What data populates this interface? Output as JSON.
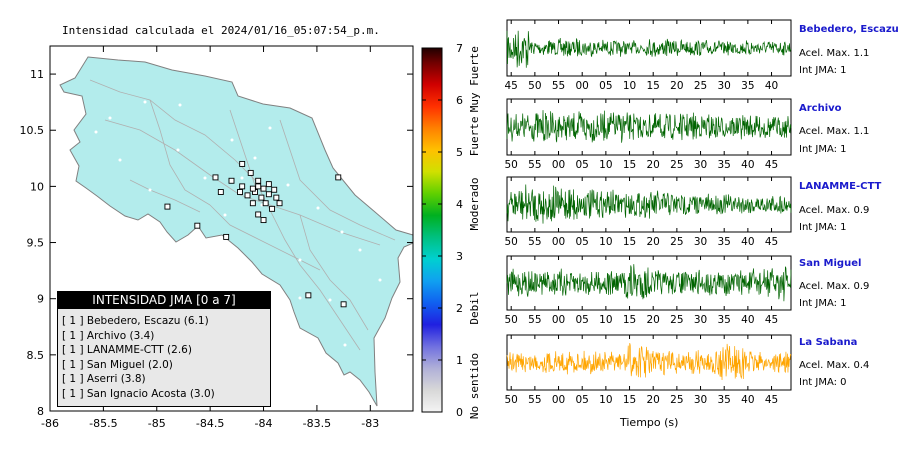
{
  "chart_data": [
    {
      "type": "map",
      "title": "Intensidad calculada el 2024/01/16_05:07:54_p.m.",
      "xlim": [
        -86,
        -82.6
      ],
      "ylim": [
        8,
        11.25
      ],
      "xticks": [
        "-86",
        "-85.5",
        "-85",
        "-84.5",
        "-84",
        "-83.5",
        "-83"
      ],
      "yticks": [
        "8",
        "8.5",
        "9",
        "9.5",
        "10",
        "10.5",
        "11"
      ],
      "land_color": "#b3ecec",
      "stations": [
        {
          "lon": -84.12,
          "lat": 10.12
        },
        {
          "lon": -84.05,
          "lat": 10.05
        },
        {
          "lon": -84.0,
          "lat": 9.98
        },
        {
          "lon": -83.95,
          "lat": 9.93
        },
        {
          "lon": -84.08,
          "lat": 9.95
        },
        {
          "lon": -84.02,
          "lat": 9.9
        },
        {
          "lon": -83.98,
          "lat": 9.85
        },
        {
          "lon": -84.15,
          "lat": 9.92
        },
        {
          "lon": -84.2,
          "lat": 10.0
        },
        {
          "lon": -84.3,
          "lat": 10.05
        },
        {
          "lon": -83.9,
          "lat": 9.97
        },
        {
          "lon": -83.88,
          "lat": 9.9
        },
        {
          "lon": -84.1,
          "lat": 9.85
        },
        {
          "lon": -83.92,
          "lat": 9.8
        },
        {
          "lon": -84.22,
          "lat": 9.95
        },
        {
          "lon": -84.45,
          "lat": 10.08
        },
        {
          "lon": -84.2,
          "lat": 10.2
        },
        {
          "lon": -84.05,
          "lat": 9.75
        },
        {
          "lon": -84.0,
          "lat": 9.7
        },
        {
          "lon": -83.85,
          "lat": 9.85
        },
        {
          "lon": -84.4,
          "lat": 9.95
        },
        {
          "lon": -84.62,
          "lat": 9.65
        },
        {
          "lon": -84.35,
          "lat": 9.55
        },
        {
          "lon": -83.3,
          "lat": 10.08
        },
        {
          "lon": -83.58,
          "lat": 9.03
        },
        {
          "lon": -83.25,
          "lat": 8.95
        },
        {
          "lon": -84.1,
          "lat": 9.98
        },
        {
          "lon": -83.95,
          "lat": 10.02
        },
        {
          "lon": -84.05,
          "lat": 10.0
        },
        {
          "lon": -84.9,
          "lat": 9.82
        }
      ]
    },
    {
      "type": "colorbar",
      "ticks": [
        "0",
        "1",
        "2",
        "3",
        "4",
        "5",
        "6",
        "7"
      ],
      "labels": [
        "No sentido",
        "Debil",
        "Moderado",
        "Fuerte",
        "Muy Fuerte"
      ]
    },
    {
      "type": "line",
      "xlabel": "Tiempo (s)",
      "series": [
        {
          "name": "Bebedero, Escazu",
          "color": "#006400",
          "ticks": [
            "45",
            "50",
            "55",
            "00",
            "05",
            "10",
            "15",
            "20",
            "25",
            "30",
            "35",
            "40"
          ],
          "acel": "Acel. Max. 1.1",
          "int": "Int JMA: 1",
          "amp": [
            0.9,
            0.35,
            0.4,
            0.35,
            0.35,
            0.3,
            0.4,
            0.35,
            0.35,
            0.3,
            0.35,
            0.3
          ]
        },
        {
          "name": "Archivo",
          "color": "#006400",
          "ticks": [
            "50",
            "55",
            "00",
            "05",
            "10",
            "15",
            "20",
            "25",
            "30",
            "35",
            "40",
            "45"
          ],
          "acel": "Acel. Max. 1.1",
          "int": "Int JMA: 1",
          "amp": [
            0.6,
            0.7,
            0.6,
            0.7,
            0.65,
            0.6,
            0.55,
            0.6,
            0.55,
            0.5,
            0.5,
            0.45
          ]
        },
        {
          "name": "LANAMME-CTT",
          "color": "#006400",
          "ticks": [
            "50",
            "55",
            "00",
            "05",
            "10",
            "15",
            "20",
            "25",
            "30",
            "35",
            "40",
            "45"
          ],
          "acel": "Acel. Max. 0.9",
          "int": "Int JMA: 1",
          "amp": [
            0.8,
            0.9,
            0.8,
            0.65,
            0.6,
            0.55,
            0.6,
            0.5,
            0.45,
            0.45,
            0.4,
            0.4
          ]
        },
        {
          "name": "San Miguel",
          "color": "#006400",
          "ticks": [
            "50",
            "55",
            "00",
            "05",
            "10",
            "15",
            "20",
            "25",
            "30",
            "35",
            "40",
            "45"
          ],
          "acel": "Acel. Max. 0.9",
          "int": "Int JMA: 1",
          "amp": [
            0.6,
            0.55,
            0.6,
            0.55,
            0.6,
            0.95,
            0.6,
            0.55,
            0.6,
            0.55,
            0.6,
            0.8
          ]
        },
        {
          "name": "La Sabana",
          "color": "#ffa500",
          "ticks": [
            "50",
            "55",
            "00",
            "05",
            "10",
            "15",
            "20",
            "25",
            "30",
            "35",
            "40",
            "45"
          ],
          "acel": "Acel. Max. 0.4",
          "int": "Int JMA: 0",
          "amp": [
            0.45,
            0.45,
            0.5,
            0.5,
            0.45,
            0.8,
            0.55,
            0.5,
            0.5,
            0.85,
            0.5,
            0.45
          ]
        }
      ]
    }
  ],
  "legend": {
    "header": "INTENSIDAD JMA [0 a 7]",
    "items": [
      "[ 1 ]  Bebedero, Escazu (6.1)",
      "[ 1 ]  Archivo (3.4)",
      "[ 1 ]  LANAMME-CTT (2.6)",
      "[ 1 ]  San Miguel (2.0)",
      "[ 1 ]  Aserri (3.8)",
      "[ 1 ]  San Ignacio Acosta (3.0)"
    ]
  }
}
